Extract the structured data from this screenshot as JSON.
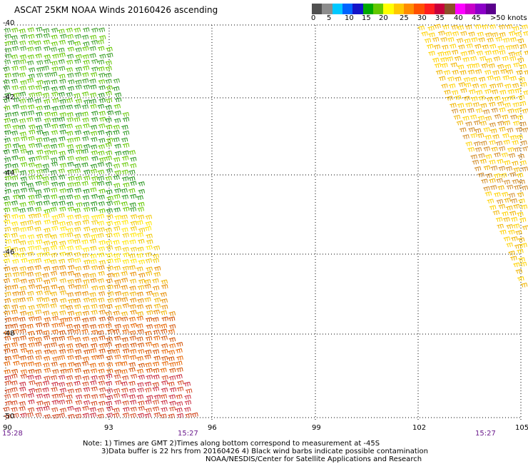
{
  "title": "ASCAT 25KM NOAA Winds 20160426 ascending",
  "colorbar": {
    "colors": [
      "#505050",
      "#8c8c8c",
      "#00c8ff",
      "#0064ff",
      "#1414c8",
      "#00aa00",
      "#64c800",
      "#ffff00",
      "#ffc800",
      "#ff8c00",
      "#ff5000",
      "#ff1e1e",
      "#c8003c",
      "#8c5028",
      "#ff00ff",
      "#c800c8",
      "#8c00c8",
      "#5a008c"
    ],
    "labels": [
      "0",
      "5",
      "10",
      "15",
      "20",
      "25",
      "30",
      "35",
      "40",
      "45",
      ">50 knots"
    ]
  },
  "lat_labels": [
    "-40",
    "-42",
    "-44",
    "-46",
    "-48",
    "-50"
  ],
  "lon_labels": [
    "90",
    "93",
    "96",
    "99",
    "102",
    "105"
  ],
  "time_labels": [
    "15:28",
    "15:27",
    "15:27"
  ],
  "notes": [
    "Note: 1) Times are GMT 2)Times along bottom correspond to measurement at -45S",
    "3)Data buffer is 22 hrs from 20160426 4) Black wind barbs indicate possible contamination",
    "NOAA/NESDIS/Center for Satellite Applications and Research"
  ],
  "chart_data": {
    "type": "wind-barb-map",
    "lat_range": [
      -50,
      -40
    ],
    "lon_range": [
      90,
      105
    ],
    "grid": true,
    "swaths": [
      {
        "time": "15:28",
        "region": "western",
        "wind_knots_range": [
          10,
          40
        ]
      },
      {
        "time": "15:27",
        "region": "eastern",
        "wind_knots_range": [
          20,
          35
        ]
      }
    ]
  }
}
